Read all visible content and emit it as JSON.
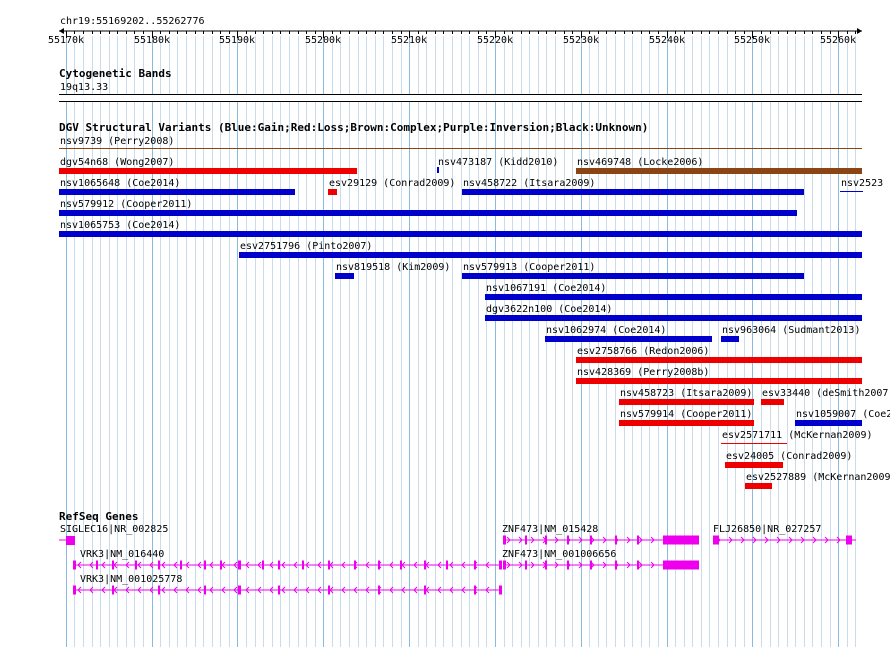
{
  "ruler": {
    "position_label": "chr19:55169202..55262776",
    "start": 55169202,
    "end": 55262776,
    "ticks": [
      "55170k",
      "55180k",
      "55190k",
      "55200k",
      "55210k",
      "55220k",
      "55230k",
      "55240k",
      "55250k",
      "55260k"
    ]
  },
  "cytoband": {
    "title": "Cytogenetic Bands",
    "band": "19q13.33"
  },
  "dgv": {
    "title": "DGV Structural Variants (Blue:Gain;Red:Loss;Brown:Complex;Purple:Inversion;Black:Unknown)",
    "colors": {
      "gain": "#0000cc",
      "loss": "#ee0000",
      "complex": "#8b4513"
    },
    "variants": [
      {
        "label": "nsv9739 (Perry2008)",
        "type": "complex",
        "style": "thin",
        "start": 55169202,
        "end": 55262776
      },
      {
        "label": "dgv54n68 (Wong2007)",
        "type": "loss",
        "start": 55169202,
        "end": 55203900
      },
      {
        "label": "nsv473187 (Kidd2010)",
        "type": "gain",
        "style": "tick",
        "start": 55213300,
        "end": 55213500
      },
      {
        "label": "nsv469748 (Locke2006)",
        "type": "complex",
        "start": 55229400,
        "end": 55262776
      },
      {
        "label": "nsv1065648 (Coe2014)",
        "type": "gain",
        "start": 55169202,
        "end": 55196700
      },
      {
        "label": "esv29129 (Conrad2009)",
        "type": "loss",
        "start": 55200500,
        "end": 55201600
      },
      {
        "label": "nsv458722 (Itsara2009)",
        "type": "gain",
        "start": 55216200,
        "end": 55256000
      },
      {
        "label": "nsv2523 (",
        "type": "gain",
        "style": "tick",
        "start": 55260200,
        "end": 55262776
      },
      {
        "label": "nsv579912 (Cooper2011)",
        "type": "gain",
        "start": 55169202,
        "end": 55255200
      },
      {
        "label": "nsv1065753 (Coe2014)",
        "type": "gain",
        "start": 55169202,
        "end": 55262776
      },
      {
        "label": "esv2751796 (Pinto2007)",
        "type": "gain",
        "start": 55190200,
        "end": 55262776
      },
      {
        "label": "nsv819518 (Kim2009)",
        "type": "gain",
        "start": 55201400,
        "end": 55203600
      },
      {
        "label": "nsv579913 (Cooper2011)",
        "type": "gain",
        "start": 55216200,
        "end": 55256000
      },
      {
        "label": "nsv1067191 (Coe2014)",
        "type": "gain",
        "start": 55218900,
        "end": 55262776
      },
      {
        "label": "dgv3622n100 (Coe2014)",
        "type": "gain",
        "start": 55218900,
        "end": 55262776
      },
      {
        "label": "nsv1062974 (Coe2014)",
        "type": "gain",
        "start": 55225800,
        "end": 55245300
      },
      {
        "label": "nsv963064 (Sudmant2013)",
        "type": "gain",
        "start": 55246300,
        "end": 55248400
      },
      {
        "label": "esv2758766 (Redon2006)",
        "type": "loss",
        "start": 55229400,
        "end": 55262776
      },
      {
        "label": "nsv428369 (Perry2008b)",
        "type": "loss",
        "start": 55229400,
        "end": 55262776
      },
      {
        "label": "nsv458723 (Itsara2009)",
        "type": "loss",
        "start": 55234500,
        "end": 55250200
      },
      {
        "label": "esv33440 (deSmith2007)",
        "type": "loss",
        "start": 55251000,
        "end": 55253700
      },
      {
        "label": "nsv579914 (Cooper2011)",
        "type": "loss",
        "start": 55234500,
        "end": 55250200
      },
      {
        "label": "nsv1059007 (Coe2",
        "type": "gain",
        "start": 55255000,
        "end": 55262776
      },
      {
        "label": "esv2571711 (McKernan2009)",
        "type": "loss",
        "style": "thin",
        "start": 55246300,
        "end": 55254000
      },
      {
        "label": "esv24005 (Conrad2009)",
        "type": "loss",
        "start": 55246800,
        "end": 55253600
      },
      {
        "label": "esv2527889 (McKernan2009)",
        "type": "loss",
        "start": 55249200,
        "end": 55252300
      }
    ]
  },
  "refseq": {
    "title": "RefSeq Genes",
    "color": "#ee00ee",
    "genes": [
      {
        "label": "SIGLEC16|NR_002825"
      },
      {
        "label": "VRK3|NM_016440"
      },
      {
        "label": "VRK3|NM_001025778"
      },
      {
        "label": "ZNF473|NM_015428"
      },
      {
        "label": "ZNF473|NM_001006656"
      },
      {
        "label": "FLJ26850|NR_027257"
      }
    ]
  }
}
